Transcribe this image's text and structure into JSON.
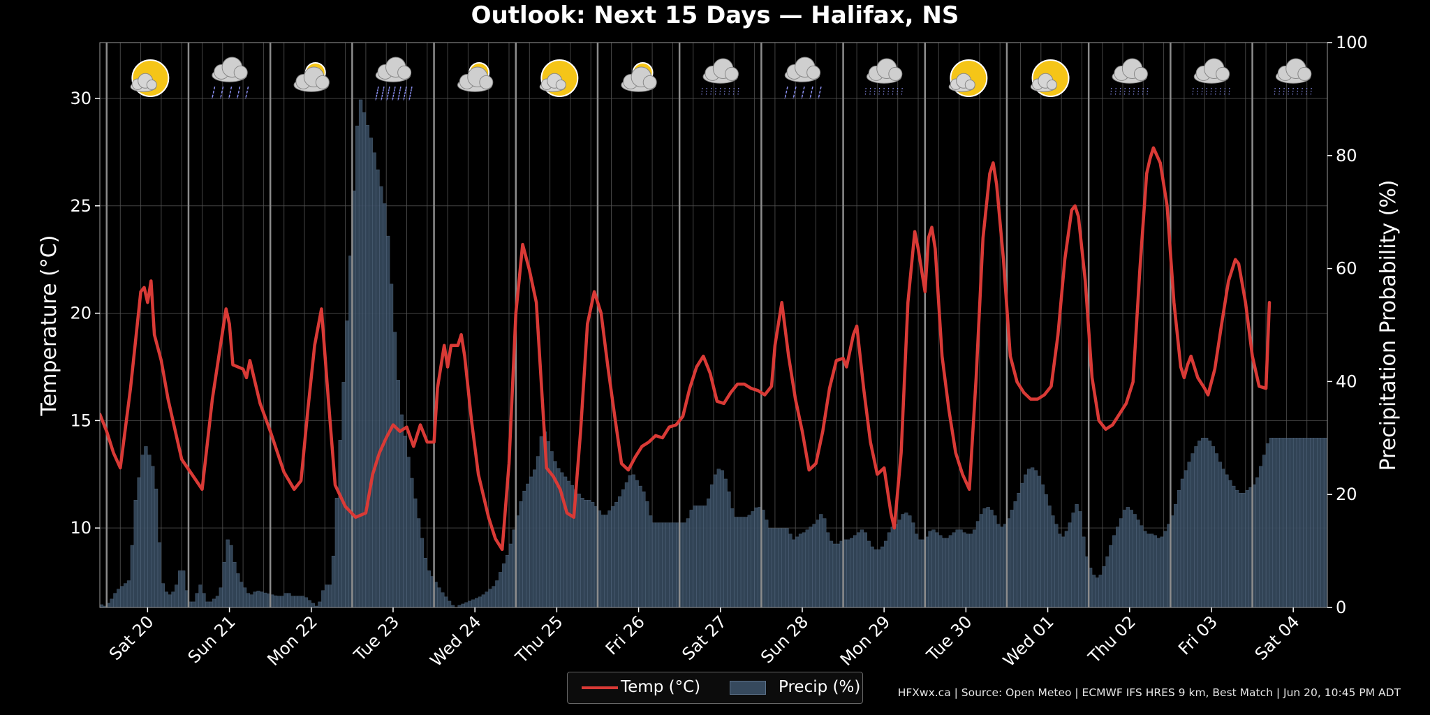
{
  "title": "Outlook: Next 15 Days — Halifax, NS",
  "footer": "HFXwx.ca | Source: Open Meteo | ECMWF IFS HRES 9 km, Best Match | Jun 20, 10:45 PM ADT",
  "legend": {
    "temp_label": "Temp (°C)",
    "precip_label": "Precip (%)"
  },
  "colors": {
    "temp_line": "#d93a36",
    "precip_bar": "#36495d",
    "precip_edge": "#5a7088",
    "grid": "#555555",
    "day_divider": "#8c8c8c",
    "background": "#000000"
  },
  "chart_data": {
    "type": "line+bar",
    "x_start": "Jun 19 22:00",
    "hours": 360,
    "ylabel_left": "Temperature (°C)",
    "ylabel_right": "Precipitation Probability (%)",
    "ylim_left": [
      6.3,
      32.6
    ],
    "ylim_right": [
      0,
      100
    ],
    "yticks_left": [
      10,
      15,
      20,
      25,
      30
    ],
    "yticks_right": [
      0,
      20,
      40,
      60,
      80,
      100
    ],
    "grid": true,
    "legend_position": "bottom-center",
    "days": [
      {
        "label": "Sat 20",
        "icon": "sun-cloud-icon"
      },
      {
        "label": "Sun 21",
        "icon": "rain-icon"
      },
      {
        "label": "Mon 22",
        "icon": "cloud-partial-sun-icon"
      },
      {
        "label": "Tue 23",
        "icon": "heavy-rain-icon"
      },
      {
        "label": "Wed 24",
        "icon": "cloud-partial-sun-icon"
      },
      {
        "label": "Thu 25",
        "icon": "sun-cloud-icon"
      },
      {
        "label": "Fri 26",
        "icon": "cloud-partial-sun-icon"
      },
      {
        "label": "Sat 27",
        "icon": "drizzle-icon"
      },
      {
        "label": "Sun 28",
        "icon": "rain-icon"
      },
      {
        "label": "Mon 29",
        "icon": "drizzle-icon"
      },
      {
        "label": "Tue 30",
        "icon": "sun-cloud-icon"
      },
      {
        "label": "Wed 01",
        "icon": "sun-cloud-icon"
      },
      {
        "label": "Thu 02",
        "icon": "drizzle-icon"
      },
      {
        "label": "Fri 03",
        "icon": "drizzle-icon"
      },
      {
        "label": "Sat 04",
        "icon": "drizzle-icon"
      }
    ],
    "temp_keypoints": [
      [
        0,
        15.3
      ],
      [
        2,
        14.5
      ],
      [
        4,
        13.5
      ],
      [
        6,
        12.8
      ],
      [
        9,
        16.5
      ],
      [
        12,
        21.0
      ],
      [
        13,
        21.2
      ],
      [
        14,
        20.5
      ],
      [
        15,
        21.5
      ],
      [
        16,
        19.0
      ],
      [
        18,
        17.8
      ],
      [
        20,
        16.0
      ],
      [
        24,
        13.2
      ],
      [
        27,
        12.5
      ],
      [
        30,
        11.8
      ],
      [
        33,
        16.0
      ],
      [
        37,
        20.2
      ],
      [
        38,
        19.5
      ],
      [
        39,
        17.6
      ],
      [
        42,
        17.4
      ],
      [
        43,
        17.0
      ],
      [
        44,
        17.8
      ],
      [
        47,
        15.8
      ],
      [
        50,
        14.5
      ],
      [
        54,
        12.6
      ],
      [
        57,
        11.8
      ],
      [
        59,
        12.2
      ],
      [
        61,
        15.5
      ],
      [
        63,
        18.5
      ],
      [
        65,
        20.2
      ],
      [
        67,
        16.0
      ],
      [
        69,
        12.0
      ],
      [
        72,
        11.0
      ],
      [
        75,
        10.5
      ],
      [
        78,
        10.7
      ],
      [
        80,
        12.5
      ],
      [
        82,
        13.5
      ],
      [
        84,
        14.2
      ],
      [
        86,
        14.8
      ],
      [
        88,
        14.5
      ],
      [
        90,
        14.7
      ],
      [
        92,
        13.8
      ],
      [
        94,
        14.8
      ],
      [
        96,
        14.0
      ],
      [
        98,
        14.0
      ],
      [
        99,
        16.5
      ],
      [
        101,
        18.5
      ],
      [
        102,
        17.5
      ],
      [
        103,
        18.5
      ],
      [
        105,
        18.5
      ],
      [
        106,
        19.0
      ],
      [
        107,
        18.0
      ],
      [
        109,
        15.0
      ],
      [
        111,
        12.5
      ],
      [
        114,
        10.5
      ],
      [
        116,
        9.5
      ],
      [
        118,
        9.0
      ],
      [
        120,
        13.0
      ],
      [
        122,
        20.0
      ],
      [
        124,
        23.2
      ],
      [
        126,
        22.0
      ],
      [
        128,
        20.5
      ],
      [
        131,
        12.8
      ],
      [
        133,
        12.4
      ],
      [
        135,
        11.8
      ],
      [
        137,
        10.7
      ],
      [
        139,
        10.5
      ],
      [
        141,
        14.5
      ],
      [
        143,
        19.5
      ],
      [
        145,
        21.0
      ],
      [
        147,
        20.0
      ],
      [
        149,
        17.5
      ],
      [
        151,
        15.2
      ],
      [
        153,
        13.0
      ],
      [
        155,
        12.7
      ],
      [
        157,
        13.3
      ],
      [
        159,
        13.8
      ],
      [
        161,
        14.0
      ],
      [
        163,
        14.3
      ],
      [
        165,
        14.2
      ],
      [
        167,
        14.7
      ],
      [
        169,
        14.8
      ],
      [
        171,
        15.2
      ],
      [
        173,
        16.5
      ],
      [
        175,
        17.5
      ],
      [
        177,
        18.0
      ],
      [
        179,
        17.2
      ],
      [
        181,
        15.9
      ],
      [
        183,
        15.8
      ],
      [
        185,
        16.3
      ],
      [
        187,
        16.7
      ],
      [
        189,
        16.7
      ],
      [
        191,
        16.5
      ],
      [
        193,
        16.4
      ],
      [
        195,
        16.2
      ],
      [
        197,
        16.6
      ],
      [
        198,
        18.5
      ],
      [
        200,
        20.5
      ],
      [
        202,
        18.0
      ],
      [
        204,
        16.0
      ],
      [
        206,
        14.5
      ],
      [
        208,
        12.7
      ],
      [
        210,
        13.0
      ],
      [
        212,
        14.5
      ],
      [
        214,
        16.5
      ],
      [
        216,
        17.8
      ],
      [
        218,
        17.9
      ],
      [
        219,
        17.5
      ],
      [
        221,
        19.0
      ],
      [
        222,
        19.4
      ],
      [
        224,
        16.5
      ],
      [
        226,
        14.0
      ],
      [
        228,
        12.5
      ],
      [
        230,
        12.8
      ],
      [
        232,
        10.7
      ],
      [
        233,
        10.0
      ],
      [
        235,
        13.5
      ],
      [
        237,
        20.5
      ],
      [
        239,
        23.8
      ],
      [
        240,
        23.0
      ],
      [
        241,
        22.0
      ],
      [
        242,
        21.0
      ],
      [
        243,
        23.5
      ],
      [
        244,
        24.0
      ],
      [
        245,
        23.0
      ],
      [
        247,
        18.0
      ],
      [
        249,
        15.5
      ],
      [
        251,
        13.5
      ],
      [
        253,
        12.5
      ],
      [
        255,
        11.8
      ],
      [
        257,
        17.0
      ],
      [
        259,
        23.5
      ],
      [
        261,
        26.5
      ],
      [
        262,
        27.0
      ],
      [
        263,
        26.0
      ],
      [
        265,
        22.5
      ],
      [
        267,
        18.0
      ],
      [
        269,
        16.8
      ],
      [
        271,
        16.3
      ],
      [
        273,
        16.0
      ],
      [
        275,
        16.0
      ],
      [
        277,
        16.2
      ],
      [
        279,
        16.6
      ],
      [
        281,
        19.0
      ],
      [
        283,
        22.5
      ],
      [
        285,
        24.8
      ],
      [
        286,
        25.0
      ],
      [
        287,
        24.5
      ],
      [
        289,
        21.5
      ],
      [
        291,
        17.0
      ],
      [
        293,
        15.0
      ],
      [
        295,
        14.6
      ],
      [
        297,
        14.8
      ],
      [
        299,
        15.3
      ],
      [
        301,
        15.8
      ],
      [
        303,
        16.8
      ],
      [
        305,
        22.0
      ],
      [
        307,
        26.5
      ],
      [
        308,
        27.2
      ],
      [
        309,
        27.7
      ],
      [
        311,
        27.0
      ],
      [
        313,
        25.0
      ],
      [
        315,
        20.5
      ],
      [
        317,
        17.5
      ],
      [
        318,
        17.0
      ],
      [
        319,
        17.6
      ],
      [
        320,
        18.0
      ],
      [
        322,
        17.0
      ],
      [
        324,
        16.5
      ],
      [
        325,
        16.2
      ],
      [
        327,
        17.4
      ],
      [
        329,
        19.5
      ],
      [
        331,
        21.5
      ],
      [
        333,
        22.5
      ],
      [
        334,
        22.3
      ],
      [
        336,
        20.5
      ],
      [
        338,
        18.0
      ],
      [
        340,
        16.6
      ],
      [
        342,
        16.5
      ],
      [
        343,
        20.5
      ]
    ],
    "precip_keypoints": [
      [
        0,
        1
      ],
      [
        1,
        0
      ],
      [
        3,
        1
      ],
      [
        5,
        3
      ],
      [
        7,
        4
      ],
      [
        9,
        5
      ],
      [
        10,
        17
      ],
      [
        12,
        25
      ],
      [
        13,
        29
      ],
      [
        14,
        28
      ],
      [
        15,
        26
      ],
      [
        16,
        24
      ],
      [
        17,
        18
      ],
      [
        18,
        5
      ],
      [
        20,
        2
      ],
      [
        22,
        3
      ],
      [
        23,
        5
      ],
      [
        24,
        8
      ],
      [
        25,
        5
      ],
      [
        26,
        1
      ],
      [
        27,
        1
      ],
      [
        28,
        1
      ],
      [
        29,
        4
      ],
      [
        30,
        4
      ],
      [
        31,
        1
      ],
      [
        33,
        1
      ],
      [
        34,
        2
      ],
      [
        35,
        2
      ],
      [
        36,
        5
      ],
      [
        37,
        11
      ],
      [
        38,
        13
      ],
      [
        39,
        9
      ],
      [
        40,
        7
      ],
      [
        41,
        5
      ],
      [
        42,
        4
      ],
      [
        43,
        3
      ],
      [
        44,
        2
      ],
      [
        46,
        3
      ],
      [
        52,
        2
      ],
      [
        54,
        2
      ],
      [
        55,
        3
      ],
      [
        56,
        2
      ],
      [
        57,
        2
      ],
      [
        60,
        2
      ],
      [
        64,
        0
      ],
      [
        66,
        4
      ],
      [
        68,
        4
      ],
      [
        72,
        45
      ],
      [
        76,
        91
      ],
      [
        80,
        82
      ],
      [
        84,
        70
      ],
      [
        88,
        36
      ],
      [
        92,
        21
      ],
      [
        96,
        7
      ],
      [
        100,
        3
      ],
      [
        104,
        0
      ],
      [
        108,
        1
      ],
      [
        112,
        2
      ],
      [
        116,
        4
      ],
      [
        120,
        10
      ],
      [
        124,
        20
      ],
      [
        128,
        25
      ],
      [
        130,
        32
      ],
      [
        134,
        25
      ],
      [
        138,
        22
      ],
      [
        142,
        19
      ],
      [
        144,
        19
      ],
      [
        148,
        16
      ],
      [
        152,
        19
      ],
      [
        156,
        24
      ],
      [
        160,
        20
      ],
      [
        162,
        15
      ],
      [
        164,
        15
      ],
      [
        168,
        15
      ],
      [
        169,
        15
      ],
      [
        172,
        15
      ],
      [
        174,
        18
      ],
      [
        176,
        18
      ],
      [
        178,
        18
      ],
      [
        180,
        23
      ],
      [
        182,
        25
      ],
      [
        184,
        22
      ],
      [
        186,
        16
      ],
      [
        188,
        16
      ],
      [
        190,
        16
      ],
      [
        193,
        18
      ],
      [
        195,
        17
      ],
      [
        196,
        14
      ],
      [
        198,
        14
      ],
      [
        200,
        14
      ],
      [
        202,
        14
      ],
      [
        203,
        12
      ],
      [
        204,
        12
      ],
      [
        205,
        13
      ],
      [
        206,
        13
      ],
      [
        208,
        14
      ],
      [
        210,
        15
      ],
      [
        212,
        17
      ],
      [
        214,
        12
      ],
      [
        216,
        11
      ],
      [
        218,
        12
      ],
      [
        220,
        12
      ],
      [
        222,
        13
      ],
      [
        224,
        14
      ],
      [
        226,
        11
      ],
      [
        228,
        10
      ],
      [
        230,
        11
      ],
      [
        232,
        14
      ],
      [
        234,
        15
      ],
      [
        236,
        17
      ],
      [
        238,
        16
      ],
      [
        240,
        12
      ],
      [
        242,
        12
      ],
      [
        244,
        14
      ],
      [
        246,
        13
      ],
      [
        248,
        12
      ],
      [
        250,
        13
      ],
      [
        252,
        14
      ],
      [
        254,
        13
      ],
      [
        256,
        13
      ],
      [
        258,
        16
      ],
      [
        260,
        18
      ],
      [
        262,
        17
      ],
      [
        264,
        14
      ],
      [
        266,
        15
      ],
      [
        268,
        18
      ],
      [
        270,
        21
      ],
      [
        271,
        23
      ],
      [
        273,
        25
      ],
      [
        275,
        24
      ],
      [
        277,
        21
      ],
      [
        279,
        17
      ],
      [
        281,
        14
      ],
      [
        282,
        12
      ],
      [
        284,
        14
      ],
      [
        285,
        16
      ],
      [
        287,
        19
      ],
      [
        288,
        15
      ],
      [
        289,
        10
      ],
      [
        291,
        6
      ],
      [
        293,
        5
      ],
      [
        295,
        8
      ],
      [
        297,
        12
      ],
      [
        299,
        15
      ],
      [
        301,
        18
      ],
      [
        303,
        17
      ],
      [
        305,
        15
      ],
      [
        307,
        13
      ],
      [
        309,
        13
      ],
      [
        311,
        12
      ],
      [
        313,
        14
      ],
      [
        315,
        17
      ],
      [
        317,
        22
      ],
      [
        319,
        25
      ],
      [
        321,
        28
      ],
      [
        323,
        30
      ],
      [
        325,
        30
      ],
      [
        327,
        28
      ],
      [
        329,
        25
      ],
      [
        331,
        23
      ],
      [
        333,
        21
      ],
      [
        335,
        20
      ],
      [
        337,
        21
      ],
      [
        339,
        22
      ],
      [
        341,
        26
      ],
      [
        342,
        28
      ],
      [
        343,
        30
      ]
    ]
  }
}
